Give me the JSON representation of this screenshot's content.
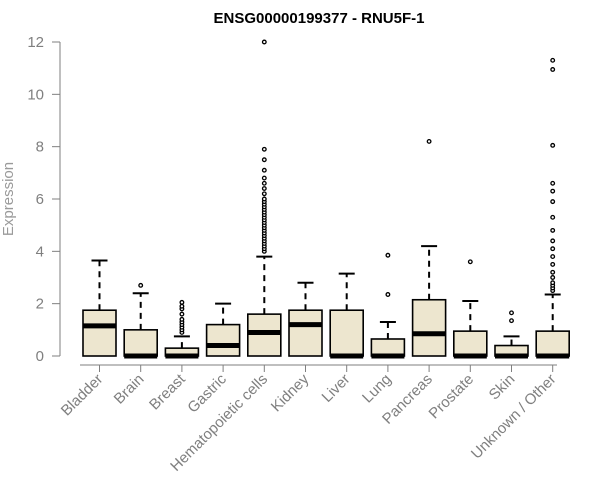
{
  "chart_data": {
    "type": "boxplot",
    "title": "ENSG00000199377 - RNU5F-1",
    "xlabel": "",
    "ylabel": "Expression",
    "ylim": [
      0,
      12
    ],
    "yticks": [
      0,
      2,
      4,
      6,
      8,
      10,
      12
    ],
    "grid": false,
    "colors": {
      "box_fill": "#ede6cf",
      "box_stroke": "#000000",
      "median": "#000000",
      "axis": "#7f7f7f"
    },
    "categories": [
      "Bladder",
      "Brain",
      "Breast",
      "Gastric",
      "Hematopoietic cells",
      "Kidney",
      "Liver",
      "Lung",
      "Pancreas",
      "Prostate",
      "Skin",
      "Unknown / Other"
    ],
    "boxes": [
      {
        "category": "Bladder",
        "whisker_low": 0,
        "q1": 0,
        "median": 1.15,
        "q3": 1.75,
        "whisker_high": 3.65,
        "outliers": []
      },
      {
        "category": "Brain",
        "whisker_low": 0,
        "q1": 0,
        "median": 0,
        "q3": 1.0,
        "whisker_high": 2.4,
        "outliers": [
          2.7
        ]
      },
      {
        "category": "Breast",
        "whisker_low": 0,
        "q1": 0,
        "median": 0,
        "q3": 0.3,
        "whisker_high": 0.75,
        "outliers": [
          0.9,
          1.0,
          1.1,
          1.2,
          1.3,
          1.4,
          1.6,
          1.8,
          1.9,
          2.05
        ]
      },
      {
        "category": "Gastric",
        "whisker_low": 0,
        "q1": 0,
        "median": 0.4,
        "q3": 1.2,
        "whisker_high": 2.0,
        "outliers": []
      },
      {
        "category": "Hematopoietic cells",
        "whisker_low": 0,
        "q1": 0,
        "median": 0.9,
        "q3": 1.6,
        "whisker_high": 3.8,
        "outliers": [
          4.0,
          4.1,
          4.2,
          4.3,
          4.4,
          4.5,
          4.6,
          4.7,
          4.8,
          4.9,
          5.0,
          5.1,
          5.2,
          5.3,
          5.4,
          5.5,
          5.6,
          5.7,
          5.8,
          5.9,
          6.0,
          6.2,
          6.4,
          6.6,
          6.8,
          7.1,
          7.5,
          7.9,
          12.0
        ]
      },
      {
        "category": "Kidney",
        "whisker_low": 0,
        "q1": 0,
        "median": 1.2,
        "q3": 1.75,
        "whisker_high": 2.8,
        "outliers": []
      },
      {
        "category": "Liver",
        "whisker_low": 0,
        "q1": 0,
        "median": 0,
        "q3": 1.75,
        "whisker_high": 3.15,
        "outliers": []
      },
      {
        "category": "Lung",
        "whisker_low": 0,
        "q1": 0,
        "median": 0,
        "q3": 0.65,
        "whisker_high": 1.3,
        "outliers": [
          2.35,
          3.85
        ]
      },
      {
        "category": "Pancreas",
        "whisker_low": 0,
        "q1": 0,
        "median": 0.85,
        "q3": 2.15,
        "whisker_high": 4.2,
        "outliers": [
          8.2
        ]
      },
      {
        "category": "Prostate",
        "whisker_low": 0,
        "q1": 0,
        "median": 0,
        "q3": 0.95,
        "whisker_high": 2.1,
        "outliers": [
          3.6
        ]
      },
      {
        "category": "Skin",
        "whisker_low": 0,
        "q1": 0,
        "median": 0,
        "q3": 0.4,
        "whisker_high": 0.75,
        "outliers": [
          1.35,
          1.65
        ]
      },
      {
        "category": "Unknown / Other",
        "whisker_low": 0,
        "q1": 0,
        "median": 0,
        "q3": 0.95,
        "whisker_high": 2.35,
        "outliers": [
          2.5,
          2.6,
          2.7,
          2.8,
          3.0,
          3.2,
          3.5,
          3.8,
          4.1,
          4.4,
          4.8,
          5.3,
          5.9,
          6.3,
          6.6,
          8.05,
          10.95,
          11.3
        ]
      }
    ]
  }
}
